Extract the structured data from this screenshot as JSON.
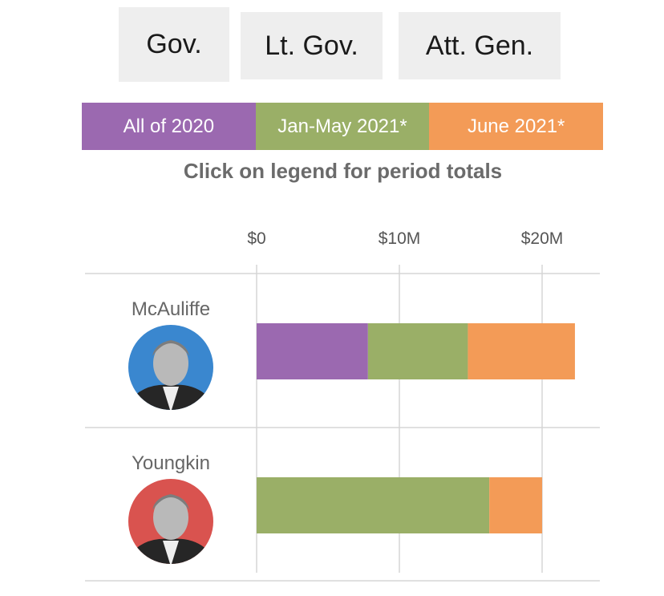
{
  "tabs": [
    {
      "label": "Gov.",
      "active": true
    },
    {
      "label": "Lt. Gov.",
      "active": false
    },
    {
      "label": "Att. Gen.",
      "active": false
    }
  ],
  "legend": [
    {
      "label": "All of 2020",
      "color": "#9b69b0"
    },
    {
      "label": "Jan-May 2021*",
      "color": "#9aaf67"
    },
    {
      "label": "June 2021*",
      "color": "#f39b57"
    }
  ],
  "hint": "Click on legend for period totals",
  "chart_data": {
    "type": "bar",
    "stacked": true,
    "orientation": "horizontal",
    "categories": [
      "McAuliffe",
      "Youngkin"
    ],
    "series": [
      {
        "name": "All of 2020",
        "color": "#9b69b0",
        "values": [
          7.8,
          0
        ]
      },
      {
        "name": "Jan-May 2021*",
        "color": "#9aaf67",
        "values": [
          7.0,
          16.3
        ]
      },
      {
        "name": "June 2021*",
        "color": "#f39b57",
        "values": [
          7.5,
          3.7
        ]
      }
    ],
    "xlim": [
      0,
      24
    ],
    "ticks": [
      {
        "value": 0,
        "label": "$0"
      },
      {
        "value": 10,
        "label": "$10M"
      },
      {
        "value": 20,
        "label": "$20M"
      }
    ],
    "avatar_colors": [
      "#3a87cf",
      "#d9534f"
    ]
  }
}
